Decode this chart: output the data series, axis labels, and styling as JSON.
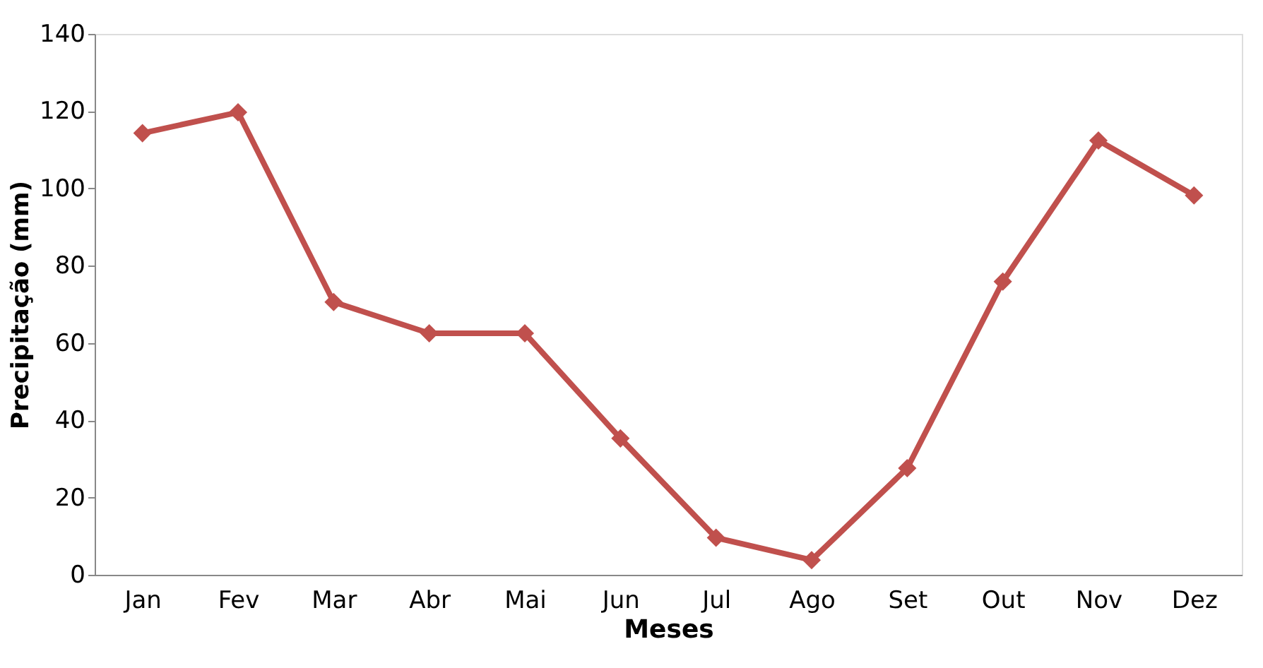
{
  "chart_data": {
    "type": "line",
    "xlabel": "Meses",
    "ylabel": "Precipitação (mm)",
    "categories": [
      "Jan",
      "Fev",
      "Mar",
      "Abr",
      "Mai",
      "Jun",
      "Jul",
      "Ago",
      "Set",
      "Out",
      "Nov",
      "Dez"
    ],
    "series": [
      {
        "color": "#c0504d",
        "values": [
          114.3,
          119.7,
          70.6,
          62.5,
          62.5,
          35.3,
          9.6,
          3.8,
          27.6,
          75.9,
          112.4,
          98.2
        ]
      }
    ],
    "ylim": [
      0,
      140
    ],
    "yticks": [
      0,
      20,
      40,
      60,
      80,
      100,
      120,
      140
    ],
    "grid": false,
    "legend": false,
    "marker": "diamond",
    "line_style": "solid"
  }
}
